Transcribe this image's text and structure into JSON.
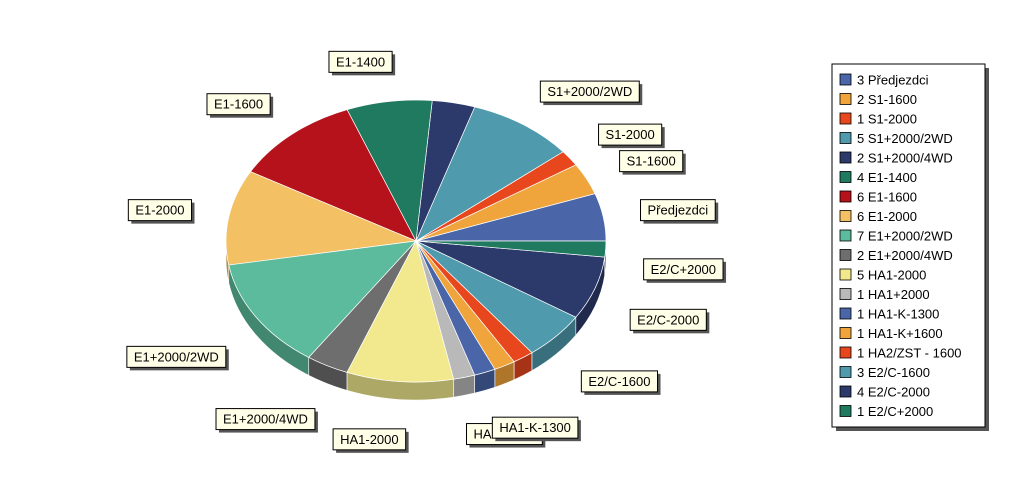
{
  "chart_data": {
    "type": "pie",
    "title": "",
    "legend_position": "right",
    "slices": [
      {
        "label": "Předjezdci",
        "legend": "3 Předjezdci",
        "value": 3,
        "color": "#4a66a8"
      },
      {
        "label": "S1-1600",
        "legend": "2 S1-1600",
        "value": 2,
        "color": "#f0a43c"
      },
      {
        "label": "S1-2000",
        "legend": "1 S1-2000",
        "value": 1,
        "color": "#e8471e"
      },
      {
        "label": "S1+2000/2WD",
        "legend": "5 S1+2000/2WD",
        "value": 5,
        "color": "#4f9aac"
      },
      {
        "label": "",
        "legend": "2 S1+2000/4WD",
        "value": 2,
        "color": "#2b3a6b"
      },
      {
        "label": "E1-1400",
        "legend": "4 E1-1400",
        "value": 4,
        "color": "#1f7a5f"
      },
      {
        "label": "E1-1600",
        "legend": "6 E1-1600",
        "value": 6,
        "color": "#b5121b"
      },
      {
        "label": "E1-2000",
        "legend": "6 E1-2000",
        "value": 6,
        "color": "#f4c064"
      },
      {
        "label": "E1+2000/2WD",
        "legend": "7 E1+2000/2WD",
        "value": 7,
        "color": "#5cbb9c"
      },
      {
        "label": "E1+2000/4WD",
        "legend": "2 E1+2000/4WD",
        "value": 2,
        "color": "#6e6e6e"
      },
      {
        "label": "HA1-2000",
        "legend": "5 HA1-2000",
        "value": 5,
        "color": "#f2e98f"
      },
      {
        "label": "HA1+2000",
        "legend": "1 HA1+2000",
        "value": 1,
        "color": "#b9b9b9"
      },
      {
        "label": "HA1-K-1300",
        "legend": "1 HA1-K-1300",
        "value": 1,
        "color": "#4a66a8"
      },
      {
        "label": "",
        "legend": "1 HA1-K+1600",
        "value": 1,
        "color": "#f0a43c"
      },
      {
        "label": "",
        "legend": "1 HA2/ZST - 1600",
        "value": 1,
        "color": "#e8471e"
      },
      {
        "label": "E2/C-1600",
        "legend": "3 E2/C-1600",
        "value": 3,
        "color": "#4f9aac"
      },
      {
        "label": "E2/C-2000",
        "legend": "4 E2/C-2000",
        "value": 4,
        "color": "#2b3a6b"
      },
      {
        "label": "E2/C+2000",
        "legend": "1 E2/C+2000",
        "value": 1,
        "color": "#1f7a5f"
      }
    ]
  }
}
